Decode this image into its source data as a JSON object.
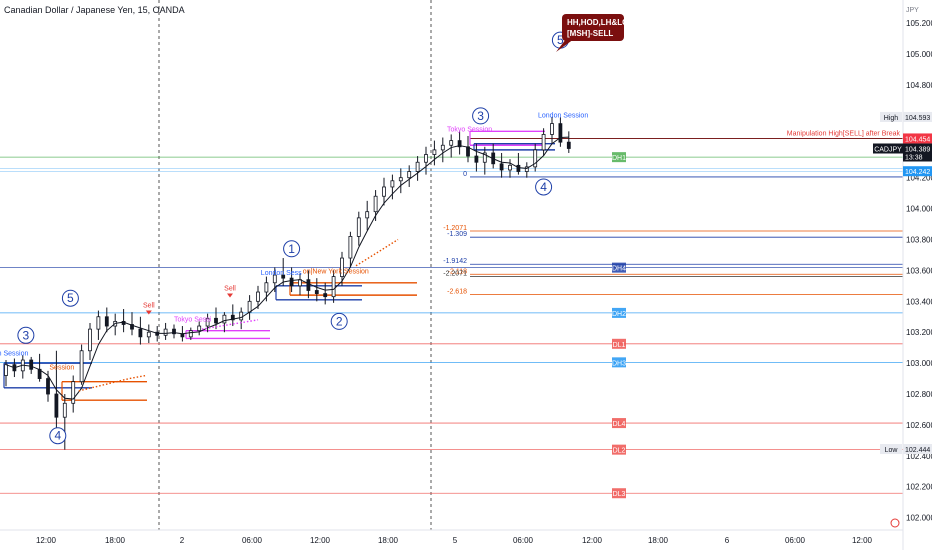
{
  "chart_data": {
    "type": "candlestick",
    "title": "Canadian Dollar / Japanese Yen, 15, OANDA",
    "currency": "JPY",
    "symbol": "CADJPY",
    "ylim": [
      101.92,
      105.35
    ],
    "y_ticks": [
      "102.000",
      "102.200",
      "102.400",
      "102.600",
      "102.800",
      "103.000",
      "103.200",
      "103.400",
      "103.600",
      "103.800",
      "104.000",
      "104.200",
      "104.400",
      "104.600",
      "104.800",
      "105.000",
      "105.200"
    ],
    "x_ticks": [
      "12:00",
      "18:00",
      "2",
      "06:00",
      "12:00",
      "18:00",
      "5",
      "06:00",
      "12:00",
      "18:00",
      "6",
      "06:00",
      "12:00"
    ],
    "session_separators": [
      2,
      5
    ],
    "price_badges": [
      {
        "label": "High",
        "value": "104.593",
        "price": 104.593,
        "color": "#e8eaf0",
        "text": "#131722"
      },
      {
        "label": "",
        "value": "104.454",
        "price": 104.454,
        "color": "#f23645",
        "text": "#ffffff"
      },
      {
        "label": "CADJPY",
        "value": "104.389",
        "price": 104.389,
        "color": "#131722",
        "text": "#ffffff",
        "sub": "13:38"
      },
      {
        "label": "",
        "value": "104.242",
        "price": 104.242,
        "color": "#2196f3",
        "text": "#ffffff"
      },
      {
        "label": "Low",
        "value": "102.444",
        "price": 102.444,
        "color": "#e8eaf0",
        "text": "#131722"
      }
    ],
    "levels": [
      {
        "name": "DH1",
        "price": 104.333,
        "color": "#4caf50"
      },
      {
        "name": "DH4",
        "price": 103.618,
        "color": "#1e3fa8"
      },
      {
        "name": "DH2",
        "price": 103.325,
        "color": "#2196f3"
      },
      {
        "name": "DL1",
        "price": 103.125,
        "color": "#ef5350"
      },
      {
        "name": "DH3",
        "price": 103.005,
        "color": "#2196f3"
      },
      {
        "name": "DL4",
        "price": 102.612,
        "color": "#ef5350"
      },
      {
        "name": "DL2",
        "price": 102.44,
        "color": "#ef5350"
      },
      {
        "name": "DL3",
        "price": 102.158,
        "color": "#ef5350"
      }
    ],
    "fib_levels": [
      {
        "label": "0",
        "price": 104.205
      },
      {
        "label": "-1.2071",
        "price": 103.855
      },
      {
        "label": "-1.309",
        "price": 103.815
      },
      {
        "label": "-1.9142",
        "price": 103.64
      },
      {
        "label": "-2.118",
        "price": 103.575
      },
      {
        "label": "-2.2071",
        "price": 103.56
      },
      {
        "label": "-2.618",
        "price": 103.445
      }
    ],
    "manipulation_label": "Manipulation High[SELL] after Break",
    "callout": {
      "line1": "HH,HOD,LH&LC",
      "line2": "[MSH]-SELL"
    },
    "wave_labels": [
      {
        "label": "3",
        "time": 0.71,
        "price": 103.18
      },
      {
        "label": "4",
        "time": 1.85,
        "price": 102.53
      },
      {
        "label": "5",
        "time": 2.3,
        "price": 103.42
      },
      {
        "label": "1",
        "time": 10.2,
        "price": 103.74
      },
      {
        "label": "2",
        "time": 11.9,
        "price": 103.27
      },
      {
        "label": "3",
        "time": 16.95,
        "price": 104.6
      },
      {
        "label": "4",
        "time": 19.2,
        "price": 104.14
      },
      {
        "label": "5",
        "time": 19.8,
        "price": 105.09
      }
    ],
    "session_labels": [
      {
        "text": "n Session",
        "time": -0.3,
        "price": 103.05,
        "color": "#2962ff"
      },
      {
        "text": "Session",
        "time": 1.55,
        "price": 102.96,
        "color": "#e65100"
      },
      {
        "text": "Tokyo Sessi",
        "time": 6.0,
        "price": 103.27,
        "color": "#e040fb"
      },
      {
        "text": "London Sess",
        "time": 9.1,
        "price": 103.57,
        "color": "#2962ff"
      },
      {
        "text": "on|New York Session",
        "time": 10.6,
        "price": 103.58,
        "color": "#e65100"
      },
      {
        "text": "Tokyo Session",
        "time": 15.75,
        "price": 104.5,
        "color": "#e040fb"
      },
      {
        "text": "London Session",
        "time": 19.0,
        "price": 104.59,
        "color": "#2962ff"
      }
    ],
    "sell_labels": [
      {
        "text": "Sell",
        "time": 5.1,
        "price": 103.36
      },
      {
        "text": "Sell",
        "time": 8.0,
        "price": 103.47
      }
    ],
    "candles": [
      {
        "t": 0.0,
        "o": 102.92,
        "h": 103.02,
        "l": 102.85,
        "c": 102.99
      },
      {
        "t": 0.3,
        "o": 102.99,
        "h": 103.03,
        "l": 102.91,
        "c": 102.95
      },
      {
        "t": 0.6,
        "o": 102.95,
        "h": 103.05,
        "l": 102.9,
        "c": 103.02
      },
      {
        "t": 0.9,
        "o": 103.02,
        "h": 103.04,
        "l": 102.93,
        "c": 102.96
      },
      {
        "t": 1.2,
        "o": 102.96,
        "h": 103.06,
        "l": 102.88,
        "c": 102.9
      },
      {
        "t": 1.5,
        "o": 102.9,
        "h": 102.95,
        "l": 102.75,
        "c": 102.8
      },
      {
        "t": 1.8,
        "o": 102.8,
        "h": 103.08,
        "l": 102.55,
        "c": 102.65
      },
      {
        "t": 2.1,
        "o": 102.65,
        "h": 102.8,
        "l": 102.44,
        "c": 102.74
      },
      {
        "t": 2.4,
        "o": 102.74,
        "h": 102.92,
        "l": 102.68,
        "c": 102.88
      },
      {
        "t": 2.7,
        "o": 102.88,
        "h": 103.12,
        "l": 102.86,
        "c": 103.08
      },
      {
        "t": 3.0,
        "o": 103.08,
        "h": 103.26,
        "l": 103.02,
        "c": 103.22
      },
      {
        "t": 3.3,
        "o": 103.22,
        "h": 103.34,
        "l": 103.15,
        "c": 103.3
      },
      {
        "t": 3.6,
        "o": 103.3,
        "h": 103.36,
        "l": 103.2,
        "c": 103.24
      },
      {
        "t": 3.9,
        "o": 103.24,
        "h": 103.32,
        "l": 103.18,
        "c": 103.27
      },
      {
        "t": 4.2,
        "o": 103.27,
        "h": 103.35,
        "l": 103.2,
        "c": 103.25
      },
      {
        "t": 4.5,
        "o": 103.25,
        "h": 103.33,
        "l": 103.18,
        "c": 103.22
      },
      {
        "t": 4.8,
        "o": 103.22,
        "h": 103.3,
        "l": 103.12,
        "c": 103.17
      },
      {
        "t": 5.1,
        "o": 103.17,
        "h": 103.25,
        "l": 103.13,
        "c": 103.2
      },
      {
        "t": 5.4,
        "o": 103.2,
        "h": 103.24,
        "l": 103.14,
        "c": 103.18
      },
      {
        "t": 5.7,
        "o": 103.18,
        "h": 103.26,
        "l": 103.15,
        "c": 103.22
      },
      {
        "t": 6.0,
        "o": 103.22,
        "h": 103.25,
        "l": 103.16,
        "c": 103.19
      },
      {
        "t": 6.3,
        "o": 103.19,
        "h": 103.24,
        "l": 103.14,
        "c": 103.17
      },
      {
        "t": 6.6,
        "o": 103.17,
        "h": 103.23,
        "l": 103.15,
        "c": 103.21
      },
      {
        "t": 6.9,
        "o": 103.21,
        "h": 103.27,
        "l": 103.18,
        "c": 103.24
      },
      {
        "t": 7.2,
        "o": 103.24,
        "h": 103.32,
        "l": 103.2,
        "c": 103.29
      },
      {
        "t": 7.5,
        "o": 103.29,
        "h": 103.36,
        "l": 103.22,
        "c": 103.26
      },
      {
        "t": 7.8,
        "o": 103.26,
        "h": 103.33,
        "l": 103.2,
        "c": 103.31
      },
      {
        "t": 8.1,
        "o": 103.31,
        "h": 103.38,
        "l": 103.24,
        "c": 103.28
      },
      {
        "t": 8.4,
        "o": 103.28,
        "h": 103.36,
        "l": 103.22,
        "c": 103.33
      },
      {
        "t": 8.7,
        "o": 103.33,
        "h": 103.44,
        "l": 103.28,
        "c": 103.4
      },
      {
        "t": 9.0,
        "o": 103.4,
        "h": 103.5,
        "l": 103.35,
        "c": 103.46
      },
      {
        "t": 9.3,
        "o": 103.46,
        "h": 103.56,
        "l": 103.4,
        "c": 103.52
      },
      {
        "t": 9.6,
        "o": 103.52,
        "h": 103.62,
        "l": 103.46,
        "c": 103.57
      },
      {
        "t": 9.9,
        "o": 103.57,
        "h": 103.68,
        "l": 103.5,
        "c": 103.55
      },
      {
        "t": 10.2,
        "o": 103.55,
        "h": 103.62,
        "l": 103.46,
        "c": 103.5
      },
      {
        "t": 10.5,
        "o": 103.5,
        "h": 103.58,
        "l": 103.44,
        "c": 103.54
      },
      {
        "t": 10.8,
        "o": 103.54,
        "h": 103.6,
        "l": 103.42,
        "c": 103.47
      },
      {
        "t": 11.1,
        "o": 103.47,
        "h": 103.55,
        "l": 103.4,
        "c": 103.45
      },
      {
        "t": 11.4,
        "o": 103.45,
        "h": 103.52,
        "l": 103.38,
        "c": 103.43
      },
      {
        "t": 11.7,
        "o": 103.43,
        "h": 103.6,
        "l": 103.39,
        "c": 103.56
      },
      {
        "t": 12.0,
        "o": 103.56,
        "h": 103.72,
        "l": 103.5,
        "c": 103.68
      },
      {
        "t": 12.3,
        "o": 103.68,
        "h": 103.85,
        "l": 103.62,
        "c": 103.82
      },
      {
        "t": 12.6,
        "o": 103.82,
        "h": 103.98,
        "l": 103.76,
        "c": 103.94
      },
      {
        "t": 12.9,
        "o": 103.94,
        "h": 104.05,
        "l": 103.86,
        "c": 103.98
      },
      {
        "t": 13.2,
        "o": 103.98,
        "h": 104.12,
        "l": 103.92,
        "c": 104.08
      },
      {
        "t": 13.5,
        "o": 104.08,
        "h": 104.2,
        "l": 104.02,
        "c": 104.14
      },
      {
        "t": 13.8,
        "o": 104.14,
        "h": 104.22,
        "l": 104.06,
        "c": 104.18
      },
      {
        "t": 14.1,
        "o": 104.18,
        "h": 104.26,
        "l": 104.1,
        "c": 104.2
      },
      {
        "t": 14.4,
        "o": 104.2,
        "h": 104.28,
        "l": 104.14,
        "c": 104.24
      },
      {
        "t": 14.7,
        "o": 104.24,
        "h": 104.34,
        "l": 104.18,
        "c": 104.3
      },
      {
        "t": 15.0,
        "o": 104.3,
        "h": 104.4,
        "l": 104.22,
        "c": 104.35
      },
      {
        "t": 15.3,
        "o": 104.35,
        "h": 104.44,
        "l": 104.28,
        "c": 104.38
      },
      {
        "t": 15.6,
        "o": 104.38,
        "h": 104.46,
        "l": 104.3,
        "c": 104.41
      },
      {
        "t": 15.9,
        "o": 104.41,
        "h": 104.48,
        "l": 104.33,
        "c": 104.44
      },
      {
        "t": 16.2,
        "o": 104.44,
        "h": 104.5,
        "l": 104.35,
        "c": 104.4
      },
      {
        "t": 16.5,
        "o": 104.4,
        "h": 104.47,
        "l": 104.3,
        "c": 104.34
      },
      {
        "t": 16.8,
        "o": 104.34,
        "h": 104.42,
        "l": 104.24,
        "c": 104.3
      },
      {
        "t": 17.1,
        "o": 104.3,
        "h": 104.4,
        "l": 104.22,
        "c": 104.36
      },
      {
        "t": 17.4,
        "o": 104.36,
        "h": 104.42,
        "l": 104.26,
        "c": 104.29
      },
      {
        "t": 17.7,
        "o": 104.29,
        "h": 104.36,
        "l": 104.2,
        "c": 104.25
      },
      {
        "t": 18.0,
        "o": 104.25,
        "h": 104.32,
        "l": 104.2,
        "c": 104.28
      },
      {
        "t": 18.3,
        "o": 104.28,
        "h": 104.36,
        "l": 104.22,
        "c": 104.24
      },
      {
        "t": 18.6,
        "o": 104.24,
        "h": 104.3,
        "l": 104.2,
        "c": 104.27
      },
      {
        "t": 18.9,
        "o": 104.27,
        "h": 104.42,
        "l": 104.24,
        "c": 104.38
      },
      {
        "t": 19.2,
        "o": 104.38,
        "h": 104.52,
        "l": 104.34,
        "c": 104.48
      },
      {
        "t": 19.5,
        "o": 104.48,
        "h": 104.593,
        "l": 104.42,
        "c": 104.55
      },
      {
        "t": 19.8,
        "o": 104.55,
        "h": 104.59,
        "l": 104.4,
        "c": 104.43
      },
      {
        "t": 20.1,
        "o": 104.43,
        "h": 104.5,
        "l": 104.36,
        "c": 104.389
      }
    ]
  }
}
